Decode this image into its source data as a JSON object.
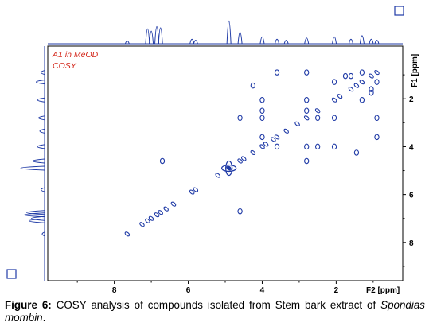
{
  "chart_data": {
    "type": "scatter",
    "subtype": "2D COSY NMR contour spectrum",
    "annotation_lines": [
      "A1 in MeOD",
      "COSY"
    ],
    "x_axis": {
      "label": "F2 [ppm]",
      "range": [
        9.8,
        0.2
      ],
      "reversed": true,
      "ticks": [
        "8",
        "6",
        "4",
        "2"
      ]
    },
    "y_axis": {
      "label": "F1 [ppm]",
      "range": [
        -0.2,
        9.6
      ],
      "reversed": true,
      "ticks": [
        "2",
        "4",
        "6",
        "8"
      ]
    },
    "grid": false,
    "diagonal_peaks": [
      {
        "x": 0.9,
        "y": 0.9
      },
      {
        "x": 1.05,
        "y": 1.05
      },
      {
        "x": 1.3,
        "y": 1.3
      },
      {
        "x": 1.45,
        "y": 1.45
      },
      {
        "x": 1.6,
        "y": 1.6
      },
      {
        "x": 1.9,
        "y": 1.9
      },
      {
        "x": 2.05,
        "y": 2.05
      },
      {
        "x": 2.5,
        "y": 2.5
      },
      {
        "x": 2.8,
        "y": 2.8
      },
      {
        "x": 3.05,
        "y": 3.05
      },
      {
        "x": 3.35,
        "y": 3.35
      },
      {
        "x": 3.6,
        "y": 3.6
      },
      {
        "x": 3.7,
        "y": 3.7
      },
      {
        "x": 3.9,
        "y": 3.9
      },
      {
        "x": 4.0,
        "y": 4.0
      },
      {
        "x": 4.25,
        "y": 4.25
      },
      {
        "x": 4.5,
        "y": 4.5
      },
      {
        "x": 4.6,
        "y": 4.6
      },
      {
        "x": 4.9,
        "y": 4.9
      },
      {
        "x": 5.2,
        "y": 5.2
      },
      {
        "x": 5.8,
        "y": 5.8
      },
      {
        "x": 5.9,
        "y": 5.9
      },
      {
        "x": 6.4,
        "y": 6.4
      },
      {
        "x": 6.6,
        "y": 6.6
      },
      {
        "x": 6.75,
        "y": 6.75
      },
      {
        "x": 6.85,
        "y": 6.85
      },
      {
        "x": 7.0,
        "y": 7.0
      },
      {
        "x": 7.1,
        "y": 7.1
      },
      {
        "x": 7.25,
        "y": 7.25
      },
      {
        "x": 7.65,
        "y": 7.65
      }
    ],
    "cross_peaks": [
      {
        "x": 2.05,
        "y": 1.3
      },
      {
        "x": 1.3,
        "y": 2.05
      },
      {
        "x": 1.05,
        "y": 1.75
      },
      {
        "x": 1.75,
        "y": 1.05
      },
      {
        "x": 4.0,
        "y": 2.05
      },
      {
        "x": 2.05,
        "y": 4.0
      },
      {
        "x": 4.0,
        "y": 2.8
      },
      {
        "x": 2.8,
        "y": 4.0
      },
      {
        "x": 4.0,
        "y": 2.5
      },
      {
        "x": 2.5,
        "y": 4.0
      },
      {
        "x": 4.6,
        "y": 6.7
      },
      {
        "x": 6.7,
        "y": 4.6
      },
      {
        "x": 4.6,
        "y": 2.8
      },
      {
        "x": 2.8,
        "y": 4.6
      },
      {
        "x": 3.6,
        "y": 4.0
      },
      {
        "x": 4.0,
        "y": 3.6
      },
      {
        "x": 2.8,
        "y": 2.5
      },
      {
        "x": 2.5,
        "y": 2.8
      },
      {
        "x": 2.8,
        "y": 2.05
      },
      {
        "x": 2.05,
        "y": 2.8
      },
      {
        "x": 1.45,
        "y": 4.25
      },
      {
        "x": 4.25,
        "y": 1.45
      },
      {
        "x": 0.9,
        "y": 1.3
      },
      {
        "x": 1.3,
        "y": 0.9
      },
      {
        "x": 0.9,
        "y": 3.6
      },
      {
        "x": 3.6,
        "y": 0.9
      },
      {
        "x": 2.8,
        "y": 0.9
      },
      {
        "x": 0.9,
        "y": 2.8
      },
      {
        "x": 1.6,
        "y": 1.05
      },
      {
        "x": 1.05,
        "y": 1.6
      }
    ],
    "solvent_peak": {
      "x": 4.9,
      "y": 4.9
    },
    "projection_f2": [
      {
        "x": 7.65,
        "h": 0.12
      },
      {
        "x": 7.1,
        "h": 0.65
      },
      {
        "x": 7.0,
        "h": 0.55
      },
      {
        "x": 6.85,
        "h": 0.75
      },
      {
        "x": 6.75,
        "h": 0.7
      },
      {
        "x": 5.9,
        "h": 0.2
      },
      {
        "x": 5.8,
        "h": 0.15
      },
      {
        "x": 4.9,
        "h": 1.0
      },
      {
        "x": 4.6,
        "h": 0.5
      },
      {
        "x": 4.0,
        "h": 0.3
      },
      {
        "x": 3.6,
        "h": 0.2
      },
      {
        "x": 3.35,
        "h": 0.15
      },
      {
        "x": 2.8,
        "h": 0.25
      },
      {
        "x": 2.05,
        "h": 0.3
      },
      {
        "x": 1.6,
        "h": 0.2
      },
      {
        "x": 1.3,
        "h": 0.35
      },
      {
        "x": 1.05,
        "h": 0.2
      },
      {
        "x": 0.9,
        "h": 0.15
      }
    ],
    "projection_f1": [
      {
        "y": 0.9,
        "h": 0.15
      },
      {
        "y": 1.3,
        "h": 0.35
      },
      {
        "y": 2.05,
        "h": 0.3
      },
      {
        "y": 2.8,
        "h": 0.25
      },
      {
        "y": 3.35,
        "h": 0.2
      },
      {
        "y": 4.0,
        "h": 0.3
      },
      {
        "y": 4.6,
        "h": 0.5
      },
      {
        "y": 4.9,
        "h": 1.0
      },
      {
        "y": 5.8,
        "h": 0.15
      },
      {
        "y": 6.75,
        "h": 0.75
      },
      {
        "y": 6.85,
        "h": 0.85
      },
      {
        "y": 7.0,
        "h": 0.55
      },
      {
        "y": 7.1,
        "h": 0.65
      },
      {
        "y": 7.65,
        "h": 0.1
      }
    ],
    "colors": {
      "contour": "#1f3aa6",
      "annotation": "#d42a1e",
      "axis": "#000000"
    }
  },
  "caption": {
    "label": "Figure 6:",
    "text": " COSY analysis of compounds isolated from Stem bark extract of ",
    "species": "Spondias mombin",
    "end": "."
  }
}
